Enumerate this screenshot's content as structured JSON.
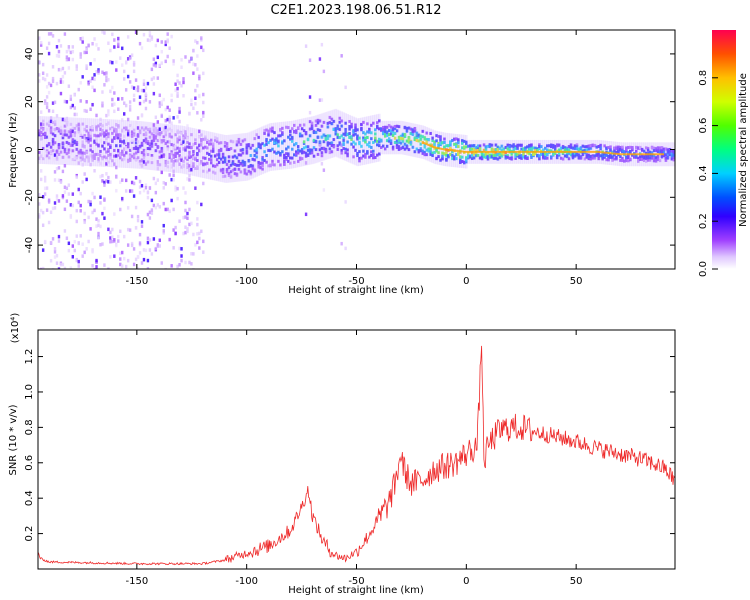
{
  "title": "C2E1.2023.198.06.51.R12",
  "chart_data": [
    {
      "type": "heatmap",
      "name": "spectrogram",
      "xlabel": "Height of straight line (km)",
      "ylabel": "Frequency (Hz)",
      "xlim": [
        -195,
        95
      ],
      "ylim": [
        -50,
        50
      ],
      "xticks": [
        -150,
        -100,
        -50,
        0,
        50
      ],
      "yticks": [
        -40,
        -20,
        0,
        20,
        40
      ],
      "colorbar": {
        "label": "Normalized spectral amplitude",
        "range": [
          0,
          1
        ],
        "ticks": [
          0.0,
          0.2,
          0.4,
          0.6,
          0.8
        ],
        "colors": [
          "#ffffff",
          "#e0c8ff",
          "#9a40ff",
          "#4000ff",
          "#0040ff",
          "#00d0ff",
          "#00ff60",
          "#a0ff00",
          "#ffe000",
          "#ff6000",
          "#ff0040"
        ]
      },
      "ridge": {
        "x": [
          -195,
          -170,
          -150,
          -130,
          -110,
          -100,
          -90,
          -80,
          -70,
          -60,
          -50,
          -40,
          -30,
          -20,
          -15,
          -10,
          0,
          10,
          20,
          30,
          40,
          50,
          60,
          70,
          80,
          90,
          95
        ],
        "y": [
          4,
          3,
          2,
          0,
          -4,
          -3,
          1,
          2,
          4,
          7,
          3,
          5,
          5,
          3,
          1,
          0,
          -1,
          -1,
          -1,
          -1,
          -1,
          -1,
          -1,
          -2,
          -2,
          -2,
          -2
        ],
        "amplitude": [
          0.3,
          0.3,
          0.3,
          0.25,
          0.35,
          0.45,
          0.5,
          0.5,
          0.55,
          0.55,
          0.55,
          0.6,
          0.7,
          0.75,
          0.75,
          0.8,
          0.85,
          0.85,
          0.8,
          0.75,
          0.65,
          0.6,
          0.55,
          0.5,
          0.45,
          0.45,
          0.45
        ]
      },
      "noise_region_x": [
        -195,
        -120
      ]
    },
    {
      "type": "line",
      "name": "snr",
      "xlabel": "Height of straight line (km)",
      "ylabel": "SNR (10 * v/v)",
      "multiplier": "(x10⁴)",
      "xlim": [
        -195,
        95
      ],
      "ylim": [
        0,
        1.35
      ],
      "xticks": [
        -150,
        -100,
        -50,
        0,
        50
      ],
      "yticks": [
        0.2,
        0.4,
        0.6,
        0.8,
        1.0,
        1.2
      ],
      "color": "#ee2a2a",
      "envelope": {
        "x": [
          -195,
          -194,
          -190,
          -150,
          -120,
          -110,
          -100,
          -90,
          -80,
          -75,
          -72,
          -70,
          -65,
          -60,
          -55,
          -50,
          -45,
          -40,
          -35,
          -32,
          -30,
          -28,
          -25,
          -20,
          -15,
          -10,
          -5,
          0,
          5,
          7,
          8,
          10,
          15,
          20,
          25,
          30,
          40,
          50,
          60,
          70,
          80,
          90,
          95
        ],
        "y": [
          0.1,
          0.06,
          0.04,
          0.03,
          0.03,
          0.05,
          0.09,
          0.13,
          0.22,
          0.35,
          0.45,
          0.3,
          0.15,
          0.08,
          0.06,
          0.1,
          0.18,
          0.28,
          0.38,
          0.5,
          0.65,
          0.55,
          0.48,
          0.5,
          0.56,
          0.58,
          0.6,
          0.65,
          0.7,
          1.3,
          0.6,
          0.7,
          0.78,
          0.8,
          0.8,
          0.78,
          0.75,
          0.72,
          0.68,
          0.65,
          0.62,
          0.57,
          0.5
        ]
      }
    }
  ]
}
